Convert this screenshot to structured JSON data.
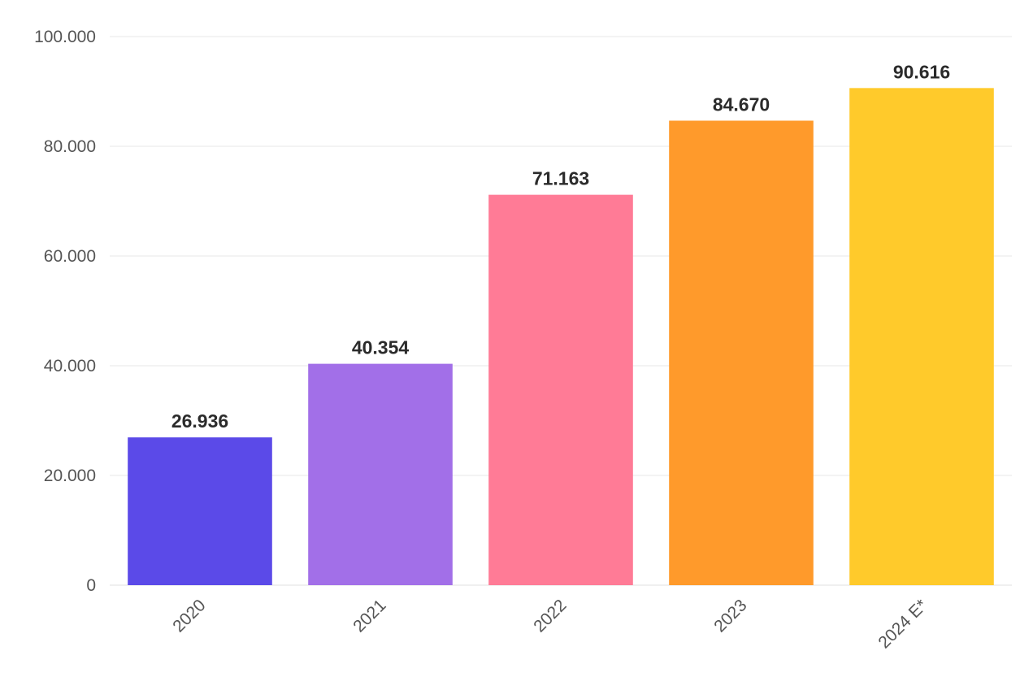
{
  "chart_data": {
    "type": "bar",
    "title": "",
    "xlabel": "",
    "ylabel": "",
    "categories": [
      "2020",
      "2021",
      "2022",
      "2023",
      "2024 E*"
    ],
    "values": [
      26936,
      40354,
      71163,
      84670,
      90616
    ],
    "value_labels": [
      "26.936",
      "40.354",
      "71.163",
      "84.670",
      "90.616"
    ],
    "colors": [
      "#5b4ae8",
      "#a26fe8",
      "#ff7b96",
      "#ff9a2b",
      "#ffca2b"
    ],
    "ylim": [
      0,
      100000
    ],
    "yticks": [
      0,
      20000,
      40000,
      60000,
      80000,
      100000
    ],
    "ytick_labels": [
      "0",
      "20.000",
      "40.000",
      "60.000",
      "80.000",
      "100.000"
    ],
    "grid": true,
    "legend": "none"
  }
}
